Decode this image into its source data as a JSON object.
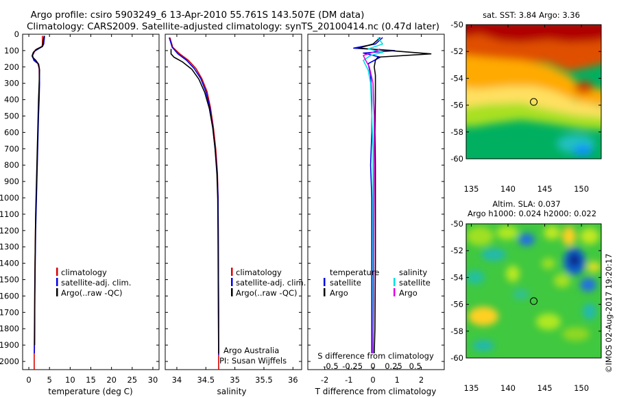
{
  "header": {
    "line1": "Argo profile: csiro 5903249_6 13-Apr-2010 55.761S 143.507E (DM data)",
    "line2": "Climatology: CARS2009. Satellite-adjusted climatology: synTS_20100414.nc (0.47d later)"
  },
  "colors": {
    "red": "#d80000",
    "blue": "#0000e6",
    "black": "#000000",
    "cyan": "#00e0e0",
    "magenta": "#e000e0"
  },
  "chart_data": [
    {
      "type": "line",
      "name": "temperature_profile",
      "xlabel": "temperature (deg C)",
      "ylabel": "",
      "xlim": [
        -1.5,
        31.5
      ],
      "ylim": [
        0,
        2050
      ],
      "y_inverted": true,
      "xticks": [
        0,
        5,
        10,
        15,
        20,
        25,
        30
      ],
      "yticks": [
        0,
        100,
        200,
        300,
        400,
        500,
        600,
        700,
        800,
        900,
        1000,
        1100,
        1200,
        1300,
        1400,
        1500,
        1600,
        1700,
        1800,
        1900,
        2000
      ],
      "legend": [
        "climatology",
        "satellite-adj. clim.",
        "Argo(..raw -QC)"
      ],
      "legend_position": "bottom-right",
      "series": [
        {
          "name": "climatology",
          "color": "red",
          "x": [
            3.3,
            3.3,
            3.2,
            1.6,
            0.9,
            1.2,
            2.2,
            2.5,
            2.55,
            2.45,
            2.3,
            2.2,
            2.1,
            2.0,
            1.9,
            1.8,
            1.7,
            1.6,
            1.55,
            1.5,
            1.45,
            1.4,
            1.35,
            1.3,
            1.3
          ],
          "y": [
            10,
            60,
            75,
            95,
            130,
            160,
            180,
            210,
            300,
            400,
            500,
            600,
            700,
            800,
            900,
            1000,
            1100,
            1200,
            1300,
            1400,
            1500,
            1600,
            1800,
            1950,
            2050
          ]
        },
        {
          "name": "satellite-adj. clim.",
          "color": "blue",
          "x": [
            3.8,
            3.6,
            3.3,
            1.3,
            0.8,
            1.3,
            2.3,
            2.55,
            2.6,
            2.5,
            2.35,
            2.25,
            2.15,
            2.05,
            1.95,
            1.85,
            1.75,
            1.65,
            1.6,
            1.55,
            1.5,
            1.45,
            1.4,
            1.35
          ],
          "y": [
            10,
            60,
            75,
            105,
            135,
            160,
            180,
            210,
            300,
            400,
            500,
            600,
            700,
            800,
            900,
            1000,
            1100,
            1200,
            1300,
            1400,
            1500,
            1600,
            1800,
            1950
          ]
        },
        {
          "name": "Argo(..raw -QC)",
          "color": "black",
          "x": [
            3.7,
            3.5,
            3.3,
            2.0,
            1.1,
            0.8,
            1.1,
            1.7,
            2.4,
            2.6,
            2.5,
            2.35,
            2.25,
            2.15,
            2.05,
            1.95,
            1.85,
            1.75,
            1.65,
            1.6,
            1.55,
            1.5,
            1.45,
            1.4
          ],
          "y": [
            10,
            40,
            75,
            90,
            110,
            130,
            145,
            160,
            185,
            220,
            300,
            400,
            500,
            600,
            700,
            800,
            900,
            1000,
            1100,
            1200,
            1300,
            1400,
            1600,
            1900
          ]
        }
      ]
    },
    {
      "type": "line",
      "name": "salinity_profile",
      "xlabel": "salinity",
      "xlim": [
        33.8,
        36.15
      ],
      "ylim": [
        0,
        2050
      ],
      "y_inverted": true,
      "xticks": [
        34,
        34.5,
        35,
        35.5,
        36
      ],
      "xticklabels": [
        "34",
        "34.5",
        "35",
        "35.5",
        "36"
      ],
      "legend": [
        "climatology",
        "satellite-adj. clim.",
        "Argo(..raw -QC)"
      ],
      "legend_position": "bottom-right",
      "annotation": [
        "Argo Australia",
        "PI: Susan Wijffels"
      ],
      "series": [
        {
          "name": "climatology",
          "color": "red",
          "x": [
            33.88,
            33.93,
            34.05,
            34.2,
            34.33,
            34.43,
            34.52,
            34.58,
            34.63,
            34.67,
            34.7,
            34.71,
            34.715,
            34.72,
            34.72
          ],
          "y": [
            20,
            80,
            120,
            160,
            210,
            270,
            350,
            450,
            570,
            700,
            850,
            1000,
            1300,
            1700,
            2050
          ]
        },
        {
          "name": "satellite-adj. clim.",
          "color": "blue",
          "x": [
            33.87,
            33.92,
            34.02,
            34.17,
            34.3,
            34.41,
            34.5,
            34.57,
            34.62,
            34.66,
            34.695,
            34.71,
            34.715,
            34.72,
            34.72
          ],
          "y": [
            20,
            80,
            120,
            160,
            210,
            270,
            350,
            450,
            570,
            700,
            850,
            1000,
            1300,
            1700,
            1960
          ]
        },
        {
          "name": "Argo(..raw -QC)",
          "color": "black",
          "x": [
            33.9,
            33.9,
            33.95,
            34.1,
            34.26,
            34.38,
            34.48,
            34.56,
            34.62,
            34.66,
            34.69,
            34.705,
            34.71,
            34.715,
            34.72
          ],
          "y": [
            90,
            120,
            140,
            170,
            215,
            275,
            355,
            455,
            575,
            705,
            855,
            1005,
            1300,
            1700,
            1950
          ]
        }
      ]
    },
    {
      "type": "line",
      "name": "difference_profile",
      "xlabel_top": "S difference from climatology",
      "xlabel": "T difference from climatology",
      "xlim": [
        -2.7,
        2.95
      ],
      "ylim": [
        0,
        2050
      ],
      "y_inverted": true,
      "xticks_T": [
        -2,
        -1,
        0,
        1,
        2
      ],
      "xticklabels_T": [
        "-2",
        "-1",
        "0",
        "1",
        "2"
      ],
      "xticks_S_labels": [
        "-0.5",
        "-0.25",
        "0",
        "0.25",
        "0.5"
      ],
      "legend_left": {
        "heading": "temperature",
        "items": [
          "satellite",
          "Argo"
        ]
      },
      "legend_right": {
        "heading": "salinity",
        "items": [
          "satellite",
          "Argo"
        ]
      },
      "series": [
        {
          "name": "temperature satellite",
          "color": "blue",
          "x": [
            0.4,
            0.1,
            -0.8,
            0.9,
            -0.4,
            0.3,
            -0.2,
            -0.1,
            -0.05,
            -0.05,
            -0.1,
            -0.05,
            -0.05,
            -0.05,
            -0.05
          ],
          "y": [
            20,
            60,
            85,
            100,
            115,
            140,
            180,
            250,
            400,
            600,
            800,
            1000,
            1400,
            1800,
            1950
          ]
        },
        {
          "name": "temperature Argo",
          "color": "black",
          "x": [
            0.3,
            0.0,
            -0.6,
            2.4,
            0.2,
            0.1,
            0.05,
            0.1,
            0.1,
            0.08,
            0.1,
            0.1,
            0.1,
            0.08,
            0.05
          ],
          "y": [
            20,
            60,
            85,
            120,
            140,
            160,
            200,
            250,
            400,
            600,
            800,
            1000,
            1400,
            1800,
            1950
          ]
        },
        {
          "name": "salinity satellite",
          "color": "cyan",
          "x": [
            0.2,
            0.4,
            -0.2,
            0.4,
            -0.1,
            -0.4,
            -0.2,
            -0.1,
            -0.05,
            0.0,
            0.0,
            0.0,
            0.0,
            0.0
          ],
          "y": [
            20,
            60,
            90,
            110,
            130,
            160,
            220,
            300,
            500,
            700,
            1000,
            1300,
            1700,
            1950
          ]
        },
        {
          "name": "salinity Argo",
          "color": "magenta",
          "x": [
            0.3,
            0.0,
            -0.4,
            -0.3,
            -0.15,
            0.0,
            0.05,
            0.05,
            0.03,
            0.02,
            0.0
          ],
          "y": [
            90,
            110,
            130,
            160,
            200,
            300,
            500,
            800,
            1200,
            1600,
            1950
          ]
        }
      ]
    },
    {
      "type": "heatmap",
      "name": "sst_map",
      "title": "sat. SST: 3.84 Argo: 3.36",
      "xlim": [
        134.3,
        152.7
      ],
      "ylim": [
        -60.0,
        -50.0
      ],
      "xticks": [
        135,
        140,
        145,
        150
      ],
      "yticks": [
        -50,
        -52,
        -54,
        -56,
        -58,
        -60
      ],
      "marker": {
        "lon": 143.507,
        "lat": -55.761
      }
    },
    {
      "type": "heatmap",
      "name": "sla_map",
      "title": [
        "Altim. SLA: 0.037",
        "Argo h1000: 0.024 h2000: 0.022"
      ],
      "xlim": [
        134.3,
        152.7
      ],
      "ylim": [
        -60.0,
        -50.0
      ],
      "xticks": [
        135,
        140,
        145,
        150
      ],
      "yticks": [
        -50,
        -52,
        -54,
        -56,
        -58,
        -60
      ],
      "marker": {
        "lon": 143.507,
        "lat": -55.761
      }
    }
  ],
  "credit": "©IMOS 02-Aug-2017 19:20:17"
}
